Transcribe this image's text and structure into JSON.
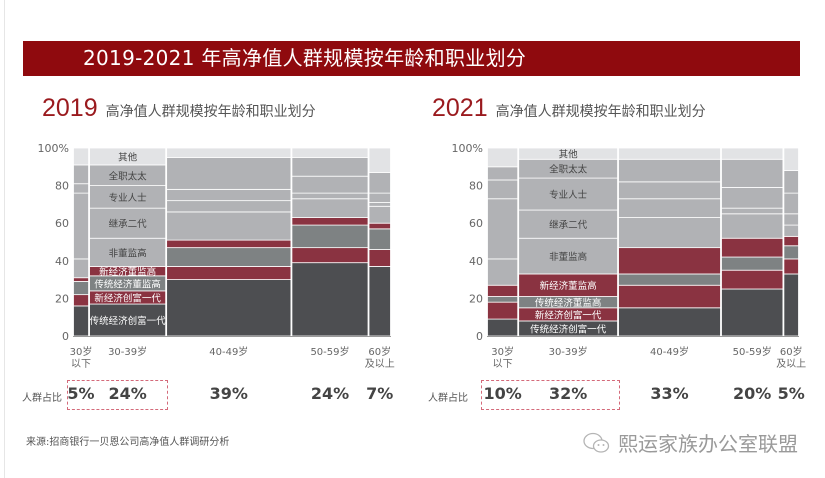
{
  "banner": {
    "title": "2019-2021 年高净值人群规模按年龄和职业划分"
  },
  "charts_meta": [
    {
      "year": "2019",
      "subtitle": "高净值人群规模按年龄和职业划分",
      "share_label": "人群占比"
    },
    {
      "year": "2021",
      "subtitle": "高净值人群规模按年龄和职业划分",
      "share_label": "人群占比"
    }
  ],
  "footer": {
    "source": "来源:招商银行一贝恩公司高净值人群调研分析",
    "brand": "熙运家族办公室联盟",
    "brand_icon": "wechat-icon"
  },
  "colors": {
    "banner": "#8f0a0e",
    "year": "#9a1a1e",
    "dark": "#4d4e51",
    "red": "#8a3341",
    "gray": "#7e8283",
    "light": "#b1b2b5",
    "lightest": "#e2e3e5"
  },
  "chart_data": [
    {
      "type": "bar",
      "subtype": "marimekko",
      "title": "2019 高净值人群规模按年龄和职业划分",
      "ylim": [
        0,
        100
      ],
      "yticks": [
        "0",
        "20",
        "40",
        "60",
        "80",
        "100%"
      ],
      "categories": [
        "30岁\n以下",
        "30-39岁",
        "40-49岁",
        "50-59岁",
        "60岁\n及以上"
      ],
      "category_share": [
        5,
        24,
        39,
        24,
        7
      ],
      "category_share_labels": [
        "5%",
        "24%",
        "39%",
        "24%",
        "7%"
      ],
      "segment_labels": [
        "传统经济创富一代",
        "新经济创富一代",
        "传统经济董监高",
        "新经济董监高",
        "非董监高",
        "继承二代",
        "专业人士",
        "全职太太",
        "其他"
      ],
      "series": [
        {
          "name": "传统经济创富一代",
          "values": [
            16,
            17,
            30,
            39,
            37
          ]
        },
        {
          "name": "新经济创富一代",
          "values": [
            6,
            7,
            7,
            8,
            9
          ]
        },
        {
          "name": "传统经济董监高",
          "values": [
            7,
            8,
            10,
            12,
            11
          ]
        },
        {
          "name": "新经济董监高",
          "values": [
            2,
            5,
            4,
            4,
            3
          ]
        },
        {
          "name": "非董监高",
          "values": [
            10,
            15,
            15,
            10,
            9
          ]
        },
        {
          "name": "继承二代",
          "values": [
            35,
            16,
            6,
            3,
            2
          ]
        },
        {
          "name": "专业人士",
          "values": [
            5,
            12,
            6,
            9,
            5
          ]
        },
        {
          "name": "全职太太",
          "values": [
            10,
            11,
            17,
            10,
            11
          ]
        },
        {
          "name": "其他",
          "values": [
            9,
            9,
            5,
            5,
            13
          ]
        }
      ]
    },
    {
      "type": "bar",
      "subtype": "marimekko",
      "title": "2021 高净值人群规模按年龄和职业划分",
      "ylim": [
        0,
        100
      ],
      "yticks": [
        "0",
        "20",
        "40",
        "60",
        "80",
        "100%"
      ],
      "categories": [
        "30岁\n以下",
        "30-39岁",
        "40-49岁",
        "50-59岁",
        "60岁\n及以上"
      ],
      "category_share": [
        10,
        32,
        33,
        20,
        5
      ],
      "category_share_labels": [
        "10%",
        "32%",
        "33%",
        "20%",
        "5%"
      ],
      "segment_labels": [
        "传统经济创富一代",
        "新经济创富一代",
        "传统经济董监高",
        "新经济董监高",
        "非董监高",
        "继承二代",
        "专业人士",
        "全职太太",
        "其他"
      ],
      "series": [
        {
          "name": "传统经济创富一代",
          "values": [
            9,
            8,
            15,
            25,
            33
          ]
        },
        {
          "name": "新经济创富一代",
          "values": [
            9,
            7,
            12,
            10,
            8
          ]
        },
        {
          "name": "传统经济董监高",
          "values": [
            3,
            6,
            6,
            7,
            7
          ]
        },
        {
          "name": "新经济董监高",
          "values": [
            6,
            12,
            14,
            10,
            5
          ]
        },
        {
          "name": "非董监高",
          "values": [
            14,
            19,
            16,
            13,
            6
          ]
        },
        {
          "name": "继承二代",
          "values": [
            32,
            15,
            10,
            3,
            6
          ]
        },
        {
          "name": "专业人士",
          "values": [
            10,
            17,
            9,
            11,
            11
          ]
        },
        {
          "name": "全职太太",
          "values": [
            7,
            10,
            12,
            15,
            12
          ]
        },
        {
          "name": "其他",
          "values": [
            10,
            6,
            6,
            6,
            12
          ]
        }
      ]
    }
  ]
}
